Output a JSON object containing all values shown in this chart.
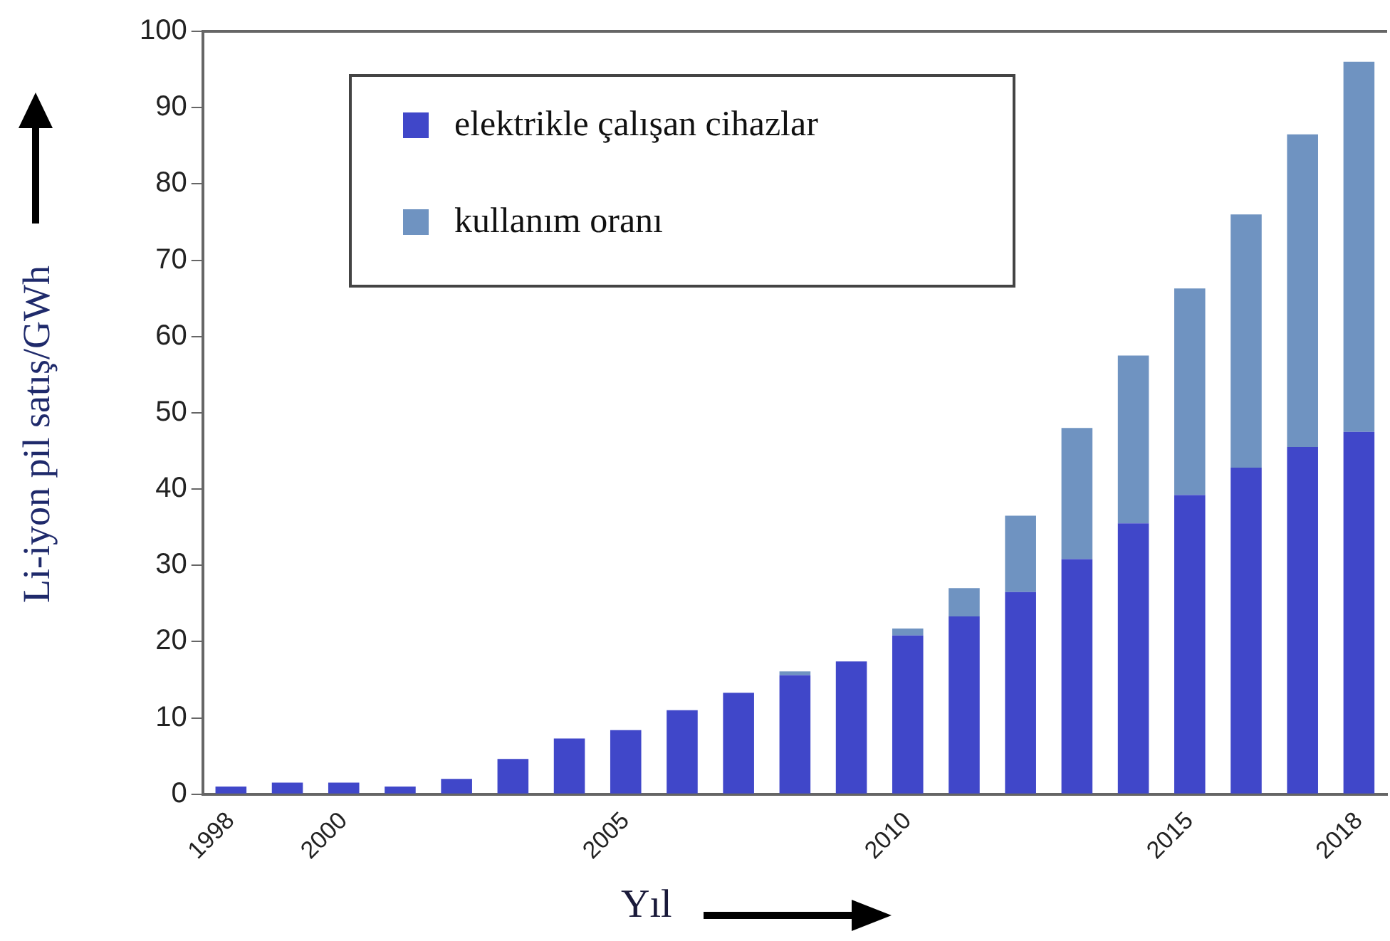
{
  "chart_data": {
    "type": "bar",
    "stacked": true,
    "xlabel": "Yıl",
    "ylabel": "Li-iyon pil satış/GWh",
    "categories": [
      "1998",
      null,
      "2000",
      null,
      null,
      null,
      null,
      "2005",
      null,
      null,
      null,
      null,
      "2010",
      null,
      null,
      null,
      null,
      "2015",
      null,
      null,
      "2018"
    ],
    "series": [
      {
        "name": "elektrikle çalışan cihazlar",
        "color": "#4047c9",
        "values": [
          1.0,
          1.5,
          1.5,
          1.0,
          2.0,
          4.6,
          7.3,
          8.4,
          11,
          13.3,
          15.6,
          17.4,
          20.8,
          23.3,
          26.5,
          30.8,
          35.5,
          39.2,
          42.8,
          45.5,
          47.5
        ]
      },
      {
        "name": "kullanım oranı",
        "color": "#6f93c1",
        "values": [
          0,
          0,
          0,
          0,
          0,
          0,
          0,
          0,
          0,
          0,
          0.5,
          0,
          0.9,
          3.7,
          10,
          17.2,
          22,
          27.1,
          33.2,
          41,
          48.5
        ]
      }
    ],
    "ylim": [
      0,
      100
    ],
    "yticks": [
      0,
      10,
      20,
      30,
      40,
      50,
      60,
      70,
      80,
      90,
      100
    ],
    "grid": false,
    "legend": "top left"
  }
}
